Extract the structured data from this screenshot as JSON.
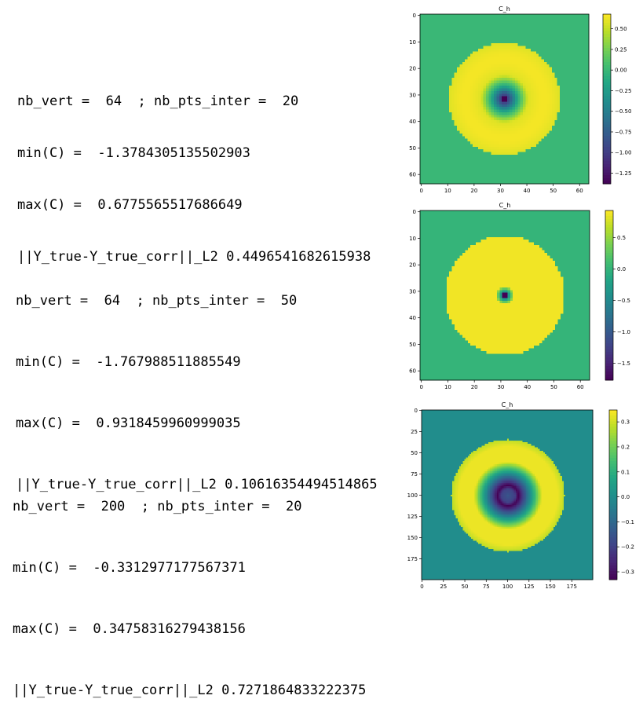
{
  "panels": [
    {
      "lines": {
        "vert": "nb_vert =  64  ; nb_pts_inter =  20",
        "min": "min(C) =  -1.3784305135502903",
        "max": "max(C) =  0.6775565517686649",
        "norm": "||Y_true-Y_true_corr||_L2 0.4496541682615938"
      },
      "chart_data": {
        "type": "heatmap",
        "title": "C_h",
        "grid_n": 64,
        "cmap": "viridis",
        "pattern": "annulus",
        "xlim": [
          0,
          63
        ],
        "ylim": [
          63,
          0
        ],
        "xticks": [
          0,
          10,
          20,
          30,
          40,
          50,
          60
        ],
        "yticks": [
          0,
          10,
          20,
          30,
          40,
          50,
          60
        ],
        "colorbar": {
          "vmin": -1.3784305135502903,
          "vmax": 0.6775565517686649,
          "ticks": [
            0.5,
            0.25,
            0.0,
            -0.25,
            -0.5,
            -0.75,
            -1.0,
            -1.25
          ],
          "tick_labels": [
            "0.50",
            "0.25",
            "0.00",
            "−0.25",
            "−0.50",
            "−0.75",
            "−1.00",
            "−1.25"
          ]
        }
      }
    },
    {
      "lines": {
        "vert": "nb_vert =  64  ; nb_pts_inter =  50",
        "min": "min(C) =  -1.767988511885549",
        "max": "max(C) =  0.9318459960999035",
        "norm": "||Y_true-Y_true_corr||_L2 0.10616354494514865"
      },
      "chart_data": {
        "type": "heatmap",
        "title": "C_h",
        "grid_n": 64,
        "cmap": "viridis",
        "pattern": "disk",
        "xlim": [
          0,
          63
        ],
        "ylim": [
          63,
          0
        ],
        "xticks": [
          0,
          10,
          20,
          30,
          40,
          50,
          60
        ],
        "yticks": [
          0,
          10,
          20,
          30,
          40,
          50,
          60
        ],
        "colorbar": {
          "vmin": -1.767988511885549,
          "vmax": 0.9318459960999035,
          "ticks": [
            0.5,
            0.0,
            -0.5,
            -1.0,
            -1.5
          ],
          "tick_labels": [
            "0.5",
            "0.0",
            "−0.5",
            "−1.0",
            "−1.5"
          ]
        }
      }
    },
    {
      "lines": {
        "vert": "nb_vert =  200  ; nb_pts_inter =  20",
        "min": "min(C) =  -0.3312977177567371",
        "max": "max(C) =  0.34758316279438156",
        "norm": "||Y_true-Y_true_corr||_L2 0.7271864833222375"
      },
      "chart_data": {
        "type": "heatmap",
        "title": "C_h",
        "grid_n": 200,
        "cmap": "viridis",
        "pattern": "smooth-annulus",
        "xlim": [
          0,
          199
        ],
        "ylim": [
          199,
          0
        ],
        "xticks": [
          0,
          25,
          50,
          75,
          100,
          125,
          150,
          175
        ],
        "yticks": [
          0,
          25,
          50,
          75,
          100,
          125,
          150,
          175
        ],
        "colorbar": {
          "vmin": -0.3312977177567371,
          "vmax": 0.34758316279438156,
          "ticks": [
            0.3,
            0.2,
            0.1,
            0.0,
            -0.1,
            -0.2,
            -0.3
          ],
          "tick_labels": [
            "0.3",
            "0.2",
            "0.1",
            "0.0",
            "−0.1",
            "−0.2",
            "−0.3"
          ]
        }
      }
    }
  ]
}
